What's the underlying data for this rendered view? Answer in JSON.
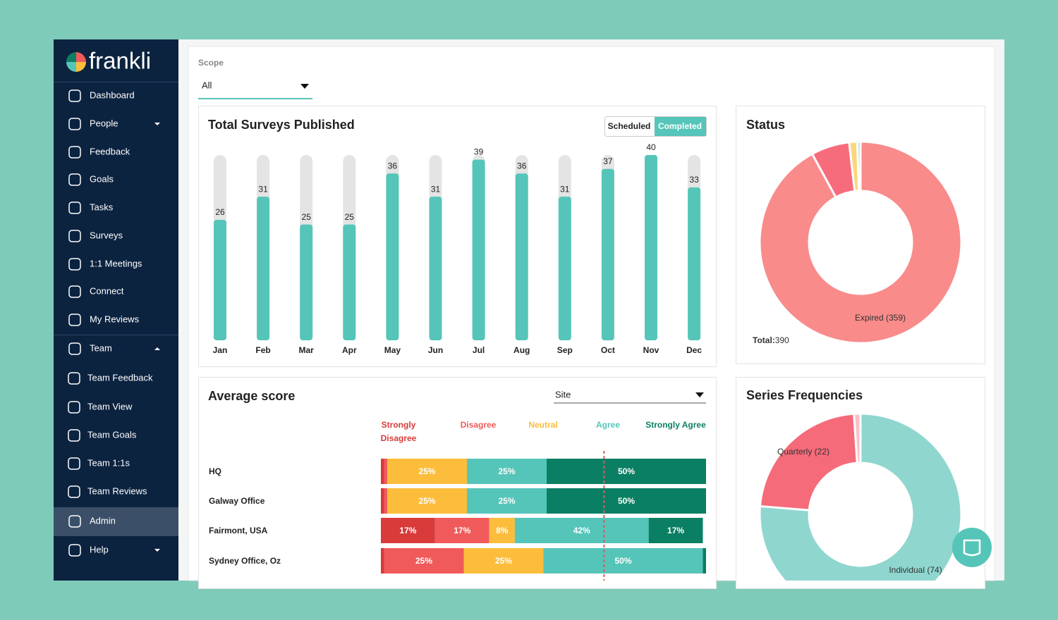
{
  "brand": "frankli",
  "nav": [
    "Dashboard",
    "People",
    "Feedback",
    "Goals",
    "Tasks",
    "Surveys",
    "1:1 Meetings",
    "Connect",
    "My Reviews",
    "Team",
    "Team Feedback",
    "Team View",
    "Team Goals",
    "Team 1:1s",
    "Team Reviews",
    "Admin",
    "Help"
  ],
  "scope": {
    "label": "Scope",
    "value": "All"
  },
  "chart_data": [
    {
      "type": "bar",
      "title": "Total Surveys Published",
      "toggle": [
        "Scheduled",
        "Completed"
      ],
      "categories": [
        "Jan",
        "Feb",
        "Mar",
        "Apr",
        "May",
        "Jun",
        "Jul",
        "Aug",
        "Sep",
        "Oct",
        "Nov",
        "Dec"
      ],
      "values": [
        26,
        31,
        25,
        25,
        36,
        31,
        39,
        36,
        31,
        37,
        40,
        33
      ],
      "ylim": [
        0,
        40
      ],
      "color": "#56c5b9",
      "track_color": "#e4e4e4"
    },
    {
      "type": "pie",
      "title": "Status",
      "labels": [
        "Expired (359)",
        null,
        null,
        null
      ],
      "values": [
        359,
        24,
        5,
        2
      ],
      "colors": [
        "#f98b8b",
        "#f76c7c",
        "#fcd67a",
        "#a9d8e6"
      ],
      "total_label": "Total:",
      "total": 390
    },
    {
      "type": "hbar",
      "title": "Average score",
      "filter": "Site",
      "categories": [
        "HQ",
        "Galway Office",
        "Fairmont, USA",
        "Sydney Office, Oz"
      ],
      "series": [
        {
          "name": "Strongly Disagree",
          "color": "#d93a3a",
          "values": [
            1,
            1,
            17,
            1
          ],
          "value_labels": [
            null,
            null,
            "17%",
            null
          ]
        },
        {
          "name": "Disagree",
          "color": "#f05a5a",
          "values": [
            1,
            1,
            17,
            25
          ],
          "value_labels": [
            null,
            null,
            "17%",
            "25%"
          ]
        },
        {
          "name": "Neutral",
          "color": "#fbbd3b",
          "values": [
            25,
            25,
            8,
            25
          ],
          "value_labels": [
            "25%",
            "25%",
            "8%",
            "25%"
          ]
        },
        {
          "name": "Agree",
          "color": "#56c5b9",
          "values": [
            25,
            25,
            42,
            50
          ],
          "value_labels": [
            "25%",
            "25%",
            "42%",
            "50%"
          ]
        },
        {
          "name": "Strongly Agree",
          "color": "#0b7f63",
          "values": [
            50,
            50,
            17,
            1
          ],
          "value_labels": [
            "50%",
            "50%",
            "17%",
            null
          ]
        }
      ],
      "xlim": [
        0,
        102
      ],
      "reference_line": 70,
      "reference_color": "#e05a5a"
    },
    {
      "type": "pie",
      "title": "Series Frequencies",
      "labels": [
        "Individual (74)",
        "Quarterly (22)",
        null
      ],
      "values": [
        74,
        22,
        1
      ],
      "colors": [
        "#8fd6cf",
        "#f56b7a",
        "#f9c0c5"
      ]
    }
  ]
}
